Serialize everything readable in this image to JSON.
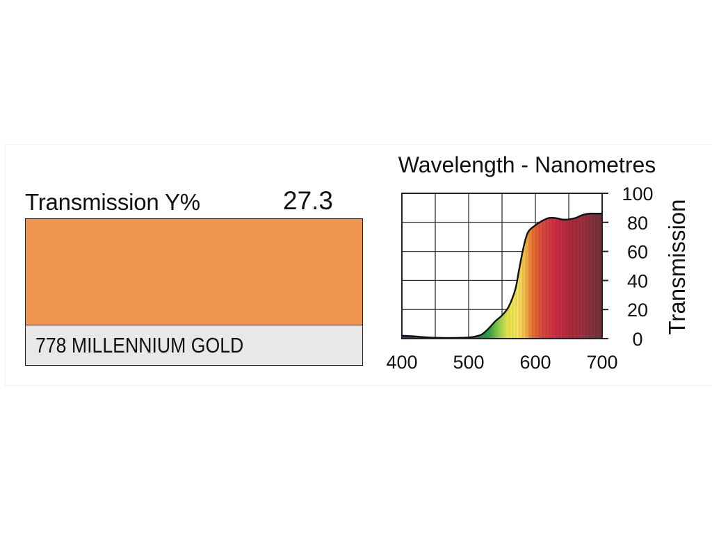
{
  "filter": {
    "transmission_label": "Transmission Y%",
    "transmission_value": "27.3",
    "name": "778 MILLENNIUM GOLD",
    "swatch_color": "#ef9751"
  },
  "chart_data": {
    "type": "area",
    "title": "Wavelength - Nanometres",
    "xlabel": "",
    "ylabel": "Transmission",
    "xlim": [
      400,
      700
    ],
    "ylim": [
      0,
      100
    ],
    "xticks": [
      "400",
      "500",
      "600",
      "700"
    ],
    "yticks": [
      "0",
      "20",
      "40",
      "60",
      "80",
      "100"
    ],
    "grid": true,
    "series": [
      {
        "x": [
          400,
          420,
          440,
          460,
          480,
          500,
          510,
          520,
          530,
          540,
          550,
          560,
          570,
          575,
          580,
          585,
          590,
          600,
          610,
          620,
          630,
          640,
          650,
          660,
          670,
          680,
          690,
          700
        ],
        "y": [
          2,
          1.5,
          0.8,
          0.5,
          0.5,
          0.8,
          1.5,
          3,
          7,
          12,
          16,
          22,
          34,
          46,
          58,
          68,
          74,
          78,
          81,
          83,
          83,
          82,
          82,
          83,
          85,
          86,
          86,
          86
        ]
      }
    ],
    "fill_gradient": [
      {
        "wl": 400,
        "color": "#3a3a8c"
      },
      {
        "wl": 480,
        "color": "#2a5f8f"
      },
      {
        "wl": 510,
        "color": "#1f7a4a"
      },
      {
        "wl": 530,
        "color": "#2f9a48"
      },
      {
        "wl": 545,
        "color": "#8cc84b"
      },
      {
        "wl": 560,
        "color": "#e9e44a"
      },
      {
        "wl": 575,
        "color": "#f7e160"
      },
      {
        "wl": 585,
        "color": "#f3b64a"
      },
      {
        "wl": 595,
        "color": "#e8732f"
      },
      {
        "wl": 610,
        "color": "#d94a3c"
      },
      {
        "wl": 630,
        "color": "#cc2d44"
      },
      {
        "wl": 650,
        "color": "#b22a3c"
      },
      {
        "wl": 670,
        "color": "#9c3040"
      },
      {
        "wl": 700,
        "color": "#6d3536"
      }
    ]
  }
}
